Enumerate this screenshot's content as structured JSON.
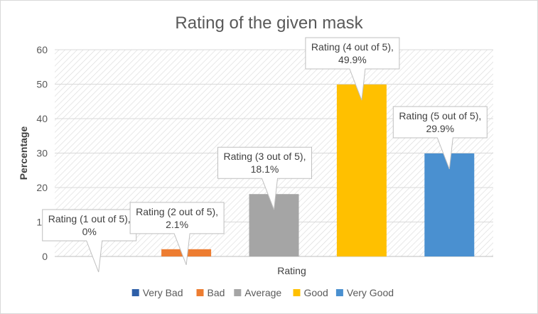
{
  "chart_data": {
    "type": "bar",
    "title": "Rating of the given mask",
    "xlabel": "Rating",
    "ylabel": "Percentage",
    "ylim": [
      0,
      60
    ],
    "yticks": [
      0,
      10,
      20,
      30,
      40,
      50,
      60
    ],
    "grid": true,
    "legend_position": "bottom",
    "series": [
      {
        "name": "Very Bad",
        "color": "#2e5fa8",
        "value": 0,
        "label_lines": [
          "Rating (1 out of 5),",
          "0%"
        ]
      },
      {
        "name": "Bad",
        "color": "#ed7d31",
        "value": 2.1,
        "label_lines": [
          "Rating (2 out of 5),",
          "2.1%"
        ]
      },
      {
        "name": "Average",
        "color": "#a5a5a5",
        "value": 18.1,
        "label_lines": [
          "Rating (3 out of 5),",
          "18.1%"
        ]
      },
      {
        "name": "Good",
        "color": "#ffc000",
        "value": 49.9,
        "label_lines": [
          "Rating (4 out of 5),",
          "49.9%"
        ]
      },
      {
        "name": "Very Good",
        "color": "#4a90d0",
        "value": 29.9,
        "label_lines": [
          "Rating (5 out of 5),",
          "29.9%"
        ]
      }
    ]
  }
}
